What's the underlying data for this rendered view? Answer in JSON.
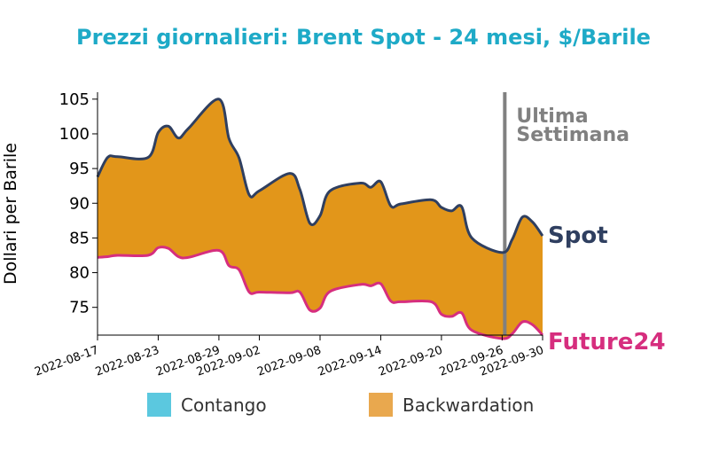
{
  "chart_data": {
    "type": "area",
    "title": "Prezzi giornalieri: Brent Spot - 24 mesi, $/Barile",
    "ylabel": "Dollari per Barile",
    "xlabel": "",
    "ylim": [
      71,
      106
    ],
    "yticks": [
      75,
      80,
      85,
      90,
      95,
      100,
      105
    ],
    "xticks": [
      "2022-08-17",
      "2022-08-23",
      "2022-08-29",
      "2022-09-02",
      "2022-09-08",
      "2022-09-14",
      "2022-09-20",
      "2022-09-26",
      "2022-09-30"
    ],
    "x": [
      "2022-08-17",
      "2022-08-18",
      "2022-08-19",
      "2022-08-22",
      "2022-08-23",
      "2022-08-24",
      "2022-08-25",
      "2022-08-26",
      "2022-08-29",
      "2022-08-30",
      "2022-08-31",
      "2022-09-01",
      "2022-09-02",
      "2022-09-05",
      "2022-09-06",
      "2022-09-07",
      "2022-09-08",
      "2022-09-09",
      "2022-09-12",
      "2022-09-13",
      "2022-09-14",
      "2022-09-15",
      "2022-09-16",
      "2022-09-19",
      "2022-09-20",
      "2022-09-21",
      "2022-09-22",
      "2022-09-23",
      "2022-09-26",
      "2022-09-27",
      "2022-09-28",
      "2022-09-29",
      "2022-09-30"
    ],
    "series": [
      {
        "name": "Spot",
        "color": "#2f3f60",
        "values": [
          93.8,
          96.6,
          96.7,
          96.6,
          100.2,
          101.1,
          99.4,
          100.8,
          105.0,
          99.3,
          96.5,
          91.2,
          91.8,
          94.3,
          92.0,
          87.1,
          88.2,
          91.8,
          92.9,
          92.3,
          93.1,
          89.6,
          89.9,
          90.5,
          89.4,
          88.9,
          89.5,
          85.0,
          82.9,
          84.8,
          88.0,
          87.3,
          85.3
        ]
      },
      {
        "name": "Future24",
        "color": "#d62e7e",
        "values": [
          82.2,
          82.3,
          82.5,
          82.5,
          83.6,
          83.5,
          82.3,
          82.2,
          83.2,
          81.0,
          80.4,
          77.2,
          77.2,
          77.1,
          77.2,
          74.6,
          74.9,
          77.3,
          78.3,
          78.1,
          78.4,
          75.9,
          75.8,
          75.8,
          74.0,
          73.7,
          74.2,
          71.7,
          70.5,
          71.2,
          72.9,
          72.5,
          71.0
        ]
      }
    ],
    "fill_color": "#e2961a",
    "annotation": {
      "label_line1": "Ultima",
      "label_line2": "Settimana",
      "x": "2022-09-26",
      "color": "#808080"
    },
    "end_labels": {
      "spot": "Spot",
      "future": "Future24"
    },
    "legend": {
      "placement": "bottom",
      "items": [
        {
          "label": "Contango",
          "color": "#5bc8df"
        },
        {
          "label": "Backwardation",
          "color": "#e9a84e"
        }
      ]
    },
    "title_color": "#1eaac7"
  }
}
